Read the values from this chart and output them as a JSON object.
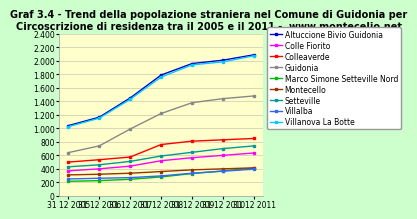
{
  "title": "Graf 3.4 - Trend della popolazione straniera nel Comune di Guidonia per\nCircoscrizione di residenza tra il 2005 e il 2011 -  www.montecelio.net",
  "x_labels": [
    "31 12 2005",
    "31 12 2006",
    "31 12 2007",
    "31 12 2008",
    "31 12 2009",
    "31 12 2010",
    "31 12 2011"
  ],
  "x_values": [
    0,
    1,
    2,
    3,
    4,
    5,
    6
  ],
  "series": [
    {
      "name": "Altuccione Bivio Guidonia",
      "color": "#0000CC",
      "marker": "s",
      "values": [
        1040,
        1165,
        1450,
        1790,
        1960,
        2010,
        2090
      ]
    },
    {
      "name": "Colle Fiorito",
      "color": "#FF00FF",
      "marker": "s",
      "values": [
        370,
        400,
        440,
        520,
        565,
        600,
        635
      ]
    },
    {
      "name": "Colleaverde",
      "color": "#FF0000",
      "marker": "s",
      "values": [
        500,
        535,
        575,
        760,
        810,
        830,
        850
      ]
    },
    {
      "name": "Guidonia",
      "color": "#888888",
      "marker": "s",
      "values": [
        640,
        740,
        990,
        1220,
        1380,
        1440,
        1480
      ]
    },
    {
      "name": "Marco Simone Setteville Nord",
      "color": "#00BB00",
      "marker": "s",
      "values": [
        215,
        225,
        245,
        280,
        330,
        370,
        410
      ]
    },
    {
      "name": "Montecello",
      "color": "#993300",
      "marker": "s",
      "values": [
        310,
        320,
        335,
        360,
        385,
        400,
        415
      ]
    },
    {
      "name": "Setteville",
      "color": "#009999",
      "marker": "s",
      "values": [
        430,
        460,
        510,
        590,
        645,
        700,
        740
      ]
    },
    {
      "name": "Villalba",
      "color": "#3366FF",
      "marker": "s",
      "values": [
        250,
        260,
        270,
        295,
        335,
        365,
        395
      ]
    },
    {
      "name": "Villanova La Botte",
      "color": "#00CCFF",
      "marker": "s",
      "values": [
        1025,
        1150,
        1430,
        1760,
        1940,
        1985,
        2075
      ]
    }
  ],
  "ylim": [
    0,
    2400
  ],
  "yticks": [
    0,
    200,
    400,
    600,
    800,
    1000,
    1200,
    1400,
    1600,
    1800,
    2000,
    2200,
    2400
  ],
  "outer_bg": "#CCFFCC",
  "plot_bg_color": "#FFFFCC",
  "title_fontsize": 7.0,
  "tick_fontsize": 5.5,
  "legend_fontsize": 5.5
}
